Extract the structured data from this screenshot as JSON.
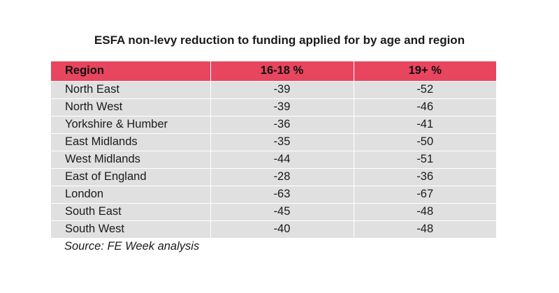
{
  "title": "ESFA non-levy reduction to funding applied for by age and region",
  "table": {
    "headers": [
      "Region",
      "16-18 %",
      "19+ %"
    ],
    "rows": [
      [
        "North East",
        "-39",
        "-52"
      ],
      [
        "North West",
        "-39",
        "-46"
      ],
      [
        "Yorkshire & Humber",
        "-36",
        "-41"
      ],
      [
        "East Midlands",
        "-35",
        "-50"
      ],
      [
        "West Midlands",
        "-44",
        "-51"
      ],
      [
        "East of England",
        "-28",
        "-36"
      ],
      [
        "London",
        "-63",
        "-67"
      ],
      [
        "South East",
        "-45",
        "-48"
      ],
      [
        "South West",
        "-40",
        "-48"
      ]
    ]
  },
  "source": "Source: FE Week analysis",
  "colors": {
    "header_bg": "#e8455f",
    "row_bg": "#e0e0e0"
  }
}
